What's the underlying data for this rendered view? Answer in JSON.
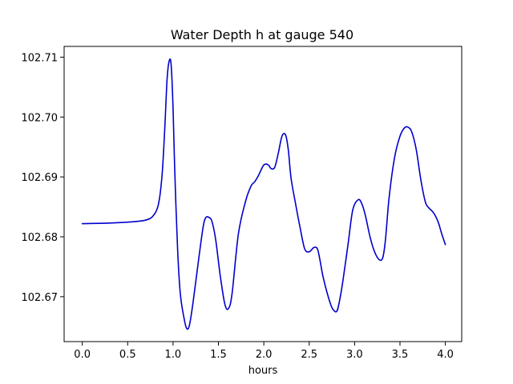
{
  "chart_data": {
    "type": "line",
    "title": "Water Depth h at gauge 540",
    "xlabel": "hours",
    "ylabel": "",
    "xlim": [
      -0.2,
      4.18
    ],
    "ylim": [
      102.6625,
      102.7118
    ],
    "xticks": [
      0.0,
      0.5,
      1.0,
      1.5,
      2.0,
      2.5,
      3.0,
      3.5,
      4.0
    ],
    "xtick_labels": [
      "0.0",
      "0.5",
      "1.0",
      "1.5",
      "2.0",
      "2.5",
      "3.0",
      "3.5",
      "4.0"
    ],
    "yticks": [
      102.67,
      102.68,
      102.69,
      102.7,
      102.71
    ],
    "ytick_labels": [
      "102.67",
      "102.68",
      "102.69",
      "102.70",
      "102.71"
    ],
    "grid": false,
    "series": [
      {
        "color": "#0000cc",
        "x": [
          0.0,
          0.3,
          0.55,
          0.7,
          0.78,
          0.84,
          0.88,
          0.91,
          0.935,
          0.96,
          0.98,
          1.0,
          1.02,
          1.05,
          1.08,
          1.12,
          1.15,
          1.18,
          1.22,
          1.28,
          1.33,
          1.36,
          1.4,
          1.43,
          1.47,
          1.52,
          1.57,
          1.61,
          1.65,
          1.72,
          1.8,
          1.86,
          1.9,
          1.94,
          2.0,
          2.05,
          2.08,
          2.12,
          2.16,
          2.2,
          2.24,
          2.27,
          2.3,
          2.35,
          2.4,
          2.45,
          2.5,
          2.55,
          2.59,
          2.62,
          2.65,
          2.7,
          2.75,
          2.8,
          2.83,
          2.87,
          2.93,
          2.98,
          3.04,
          3.08,
          3.12,
          3.17,
          3.22,
          3.27,
          3.31,
          3.34,
          3.38,
          3.44,
          3.5,
          3.55,
          3.59,
          3.63,
          3.68,
          3.73,
          3.78,
          3.82,
          3.87,
          3.92,
          3.96,
          4.0
        ],
        "y": [
          102.6822,
          102.6823,
          102.6825,
          102.6828,
          102.6835,
          102.6855,
          102.6905,
          102.6985,
          102.7065,
          102.7095,
          102.7085,
          102.7015,
          102.6905,
          102.678,
          102.6705,
          102.6665,
          102.6647,
          102.6652,
          102.669,
          102.676,
          102.6815,
          102.6832,
          102.6832,
          102.6825,
          102.6795,
          102.6735,
          102.6688,
          102.668,
          102.6705,
          102.6805,
          102.686,
          102.6885,
          102.6892,
          102.6902,
          102.692,
          102.692,
          102.6914,
          102.6916,
          102.694,
          102.6968,
          102.697,
          102.6945,
          102.6898,
          102.6855,
          102.6815,
          102.678,
          102.6775,
          102.6782,
          102.678,
          102.676,
          102.6735,
          102.6705,
          102.6682,
          102.6675,
          102.669,
          102.6725,
          102.679,
          102.6845,
          102.6862,
          102.6855,
          102.6835,
          102.68,
          102.6775,
          102.6762,
          102.6765,
          102.6795,
          102.6865,
          102.6932,
          102.6968,
          102.6982,
          102.6983,
          102.6975,
          102.6945,
          102.6895,
          102.6858,
          102.6848,
          102.684,
          102.6825,
          102.6805,
          102.6787
        ]
      }
    ]
  }
}
